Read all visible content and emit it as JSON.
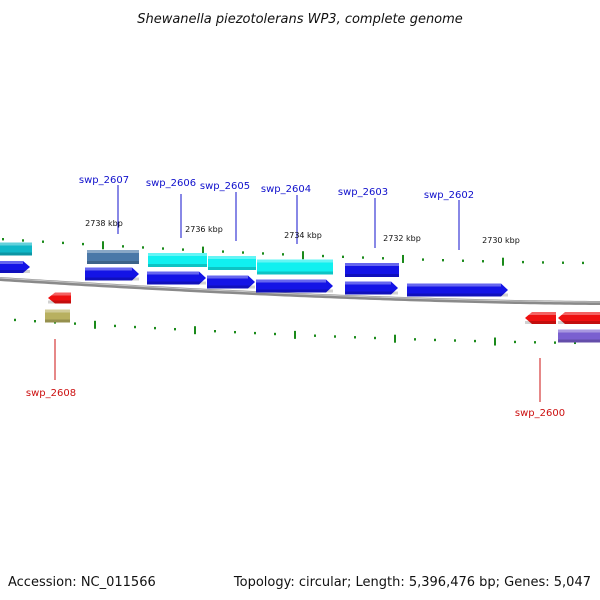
{
  "title": "Shewanella piezotolerans WP3, complete genome",
  "accession_text": "Accession: NC_011566",
  "summary_text": "Topology: circular; Length: 5,396,476 bp; Genes: 5,047",
  "scale_labels": [
    "2738 kbp",
    "2736 kbp",
    "2734 kbp",
    "2732 kbp",
    "2730 kbp"
  ],
  "gene_labels_top": [
    "swp_2607",
    "swp_2606",
    "swp_2605",
    "swp_2604",
    "swp_2603",
    "swp_2602"
  ],
  "gene_labels_bottom": [
    "swp_2608",
    "swp_2600"
  ],
  "colors": {
    "label_top": "#1010cc",
    "label_bottom": "#cc1010",
    "tick": "#1a8a1a",
    "backbone": "#8a8a8a",
    "cds_blue": "#1414e6",
    "cds_cyan": "#10f0f0",
    "cds_teal": "#10b8c8",
    "cds_steel": "#4a78a8",
    "cds_red": "#ee1010",
    "cds_olive": "#b8b060",
    "cds_violet": "#7a60d0"
  }
}
